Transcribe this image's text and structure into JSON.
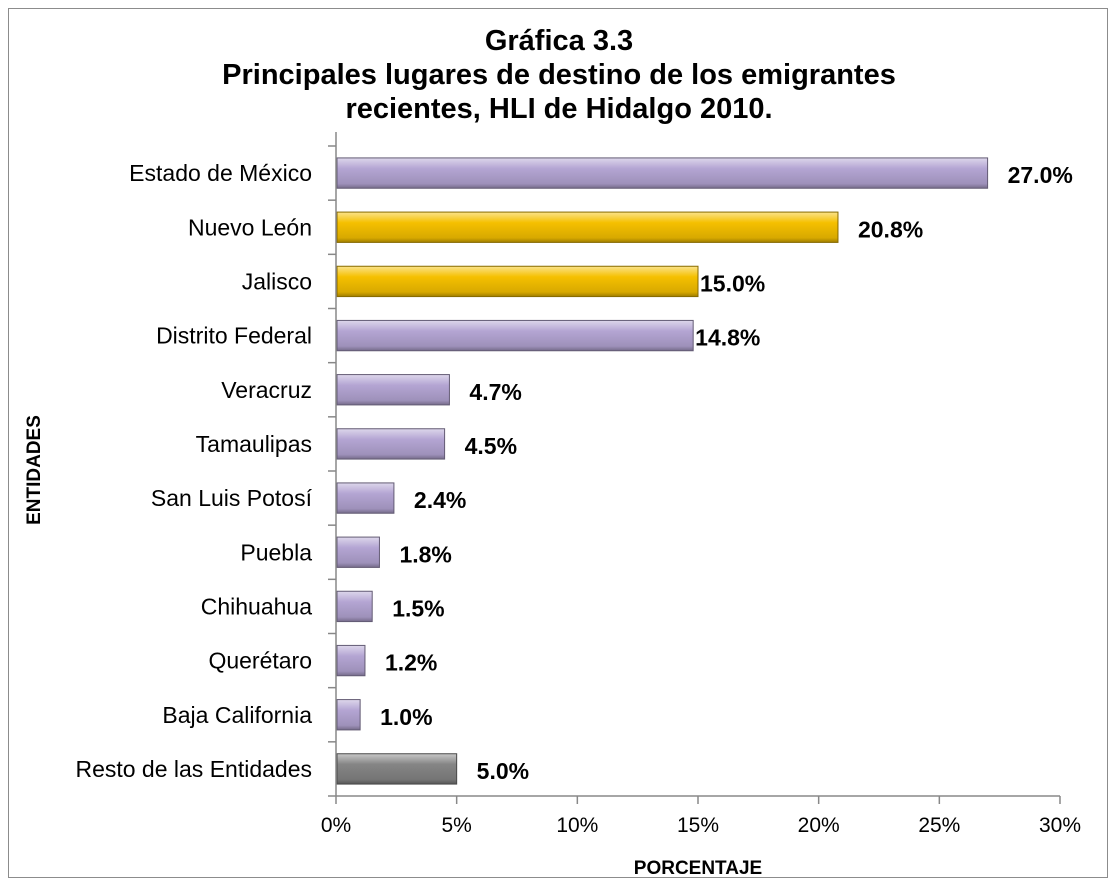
{
  "chart_data": {
    "type": "bar",
    "orientation": "horizontal",
    "title": [
      "Gráfica 3.3",
      "Principales lugares de destino de los emigrantes",
      "recientes, HLI de Hidalgo 2010."
    ],
    "xlabel": "PORCENTAJE",
    "ylabel": "ENTIDADES",
    "xlim": [
      0,
      30
    ],
    "xticks": [
      "0%",
      "5%",
      "10%",
      "15%",
      "20%",
      "25%",
      "30%"
    ],
    "categories": [
      "Estado de México",
      "Nuevo León",
      "Jalisco",
      "Distrito Federal",
      "Veracruz",
      "Tamaulipas",
      "San Luis Potosí",
      "Puebla",
      "Chihuahua",
      "Querétaro",
      "Baja California",
      "Resto de las Entidades"
    ],
    "values": [
      27.0,
      20.8,
      15.0,
      14.8,
      4.7,
      4.5,
      2.4,
      1.8,
      1.5,
      1.2,
      1.0,
      5.0
    ],
    "data_labels": [
      "27.0%",
      "20.8%",
      "15.0%",
      "14.8%",
      "4.7%",
      "4.5%",
      "2.4%",
      "1.8%",
      "1.5%",
      "1.2%",
      "1.0%",
      "5.0%"
    ],
    "bar_colors": [
      "#b4a5d3",
      "#f5c000",
      "#f5c000",
      "#b4a5d3",
      "#b4a5d3",
      "#b4a5d3",
      "#b4a5d3",
      "#b4a5d3",
      "#b4a5d3",
      "#b4a5d3",
      "#b4a5d3",
      "#858585"
    ],
    "grid": false,
    "legend": "none"
  }
}
